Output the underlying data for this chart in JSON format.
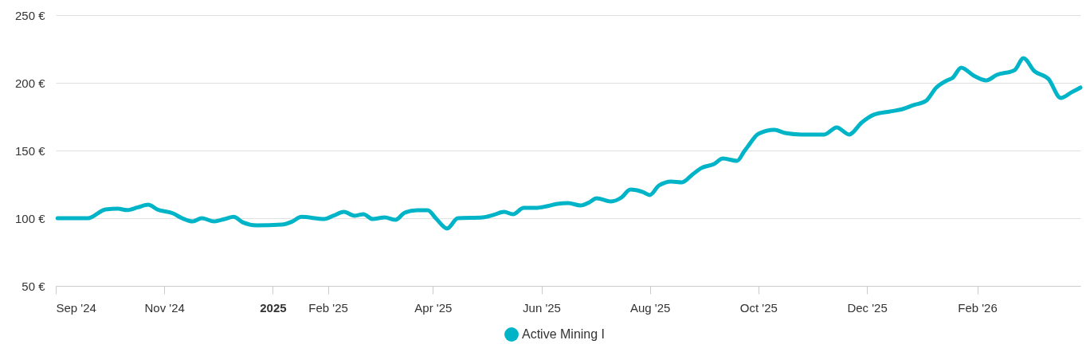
{
  "chart_data": {
    "type": "line",
    "x": [
      "2024-09-02",
      "2024-09-19",
      "2024-09-29",
      "2024-10-06",
      "2024-10-11",
      "2024-10-17",
      "2024-10-23",
      "2024-10-28",
      "2024-11-06",
      "2024-11-11",
      "2024-11-17",
      "2024-11-22",
      "2024-11-29",
      "2024-12-05",
      "2024-12-10",
      "2024-12-15",
      "2024-12-23",
      "2025-01-06",
      "2025-01-12",
      "2025-01-17",
      "2025-01-30",
      "2025-02-04",
      "2025-02-10",
      "2025-02-16",
      "2025-02-21",
      "2025-02-26",
      "2025-03-05",
      "2025-03-11",
      "2025-03-16",
      "2025-03-23",
      "2025-03-29",
      "2025-04-03",
      "2025-04-09",
      "2025-04-15",
      "2025-04-29",
      "2025-05-05",
      "2025-05-11",
      "2025-05-16",
      "2025-05-22",
      "2025-05-29",
      "2025-06-04",
      "2025-06-10",
      "2025-06-16",
      "2025-06-23",
      "2025-06-28",
      "2025-07-02",
      "2025-07-10",
      "2025-07-16",
      "2025-07-21",
      "2025-07-28",
      "2025-08-01",
      "2025-08-06",
      "2025-08-13",
      "2025-08-19",
      "2025-08-25",
      "2025-08-30",
      "2025-09-06",
      "2025-09-11",
      "2025-09-19",
      "2025-09-23",
      "2025-09-25",
      "2025-10-01",
      "2025-10-10",
      "2025-10-16",
      "2025-10-25",
      "2025-11-07",
      "2025-11-14",
      "2025-11-21",
      "2025-11-28",
      "2025-12-05",
      "2025-12-14",
      "2025-12-21",
      "2025-12-27",
      "2026-01-03",
      "2026-01-09",
      "2026-01-15",
      "2026-01-18",
      "2026-01-23",
      "2026-01-30",
      "2026-02-06",
      "2026-02-12",
      "2026-02-22",
      "2026-02-27",
      "2026-03-05",
      "2026-03-13",
      "2026-03-20",
      "2026-03-26",
      "2026-03-31"
    ],
    "series": [
      {
        "name": "Active Mining I",
        "color": "#00b4c8",
        "values": [
          100,
          100,
          106.5,
          107,
          106,
          108,
          110,
          106.5,
          103.5,
          100,
          97.6,
          100,
          97.6,
          99.4,
          101,
          97,
          94.7,
          95.3,
          97.6,
          101,
          99.4,
          101.8,
          104.7,
          101.8,
          103,
          99.4,
          100.6,
          98.8,
          104,
          105.9,
          105.9,
          99.4,
          92.4,
          100,
          100.6,
          102.4,
          104.7,
          102.9,
          107.6,
          107.6,
          108.8,
          110.6,
          111.2,
          109.4,
          111.8,
          114.7,
          112.4,
          115.3,
          121.2,
          119.4,
          117.1,
          124.1,
          127.1,
          126.5,
          132.4,
          137.1,
          140,
          144.1,
          142.4,
          149.4,
          152.9,
          162.4,
          165.3,
          162.9,
          161.8,
          161.8,
          167.1,
          161.8,
          170.6,
          176.5,
          178.8,
          180.6,
          183.5,
          186.5,
          196.5,
          201.8,
          203.5,
          211.2,
          205.3,
          201.8,
          205.9,
          209.4,
          218.2,
          208.8,
          202.9,
          188.8,
          193,
          196.5
        ]
      }
    ],
    "xlim": [
      "2024-09-01",
      "2026-03-31"
    ],
    "xticks": [
      {
        "value": "2024-09-01",
        "label": "Sep '24"
      },
      {
        "value": "2024-11-01",
        "label": "Nov '24"
      },
      {
        "value": "2025-01-01",
        "label": "2025"
      },
      {
        "value": "2025-02-01",
        "label": "Feb '25"
      },
      {
        "value": "2025-04-01",
        "label": "Apr '25"
      },
      {
        "value": "2025-06-01",
        "label": "Jun '25"
      },
      {
        "value": "2025-08-01",
        "label": "Aug '25"
      },
      {
        "value": "2025-10-01",
        "label": "Oct '25"
      },
      {
        "value": "2025-12-01",
        "label": "Dec '25"
      },
      {
        "value": "2026-02-01",
        "label": "Feb '26"
      }
    ],
    "ylim": [
      50,
      250
    ],
    "yticks": [
      {
        "value": 50,
        "label": "50 €"
      },
      {
        "value": 100,
        "label": "100 €"
      },
      {
        "value": 150,
        "label": "150 €"
      },
      {
        "value": 200,
        "label": "200 €"
      },
      {
        "value": 250,
        "label": "250 €"
      }
    ],
    "grid": "y",
    "legend": "bottom",
    "marker": "none",
    "line_style": "solid"
  }
}
